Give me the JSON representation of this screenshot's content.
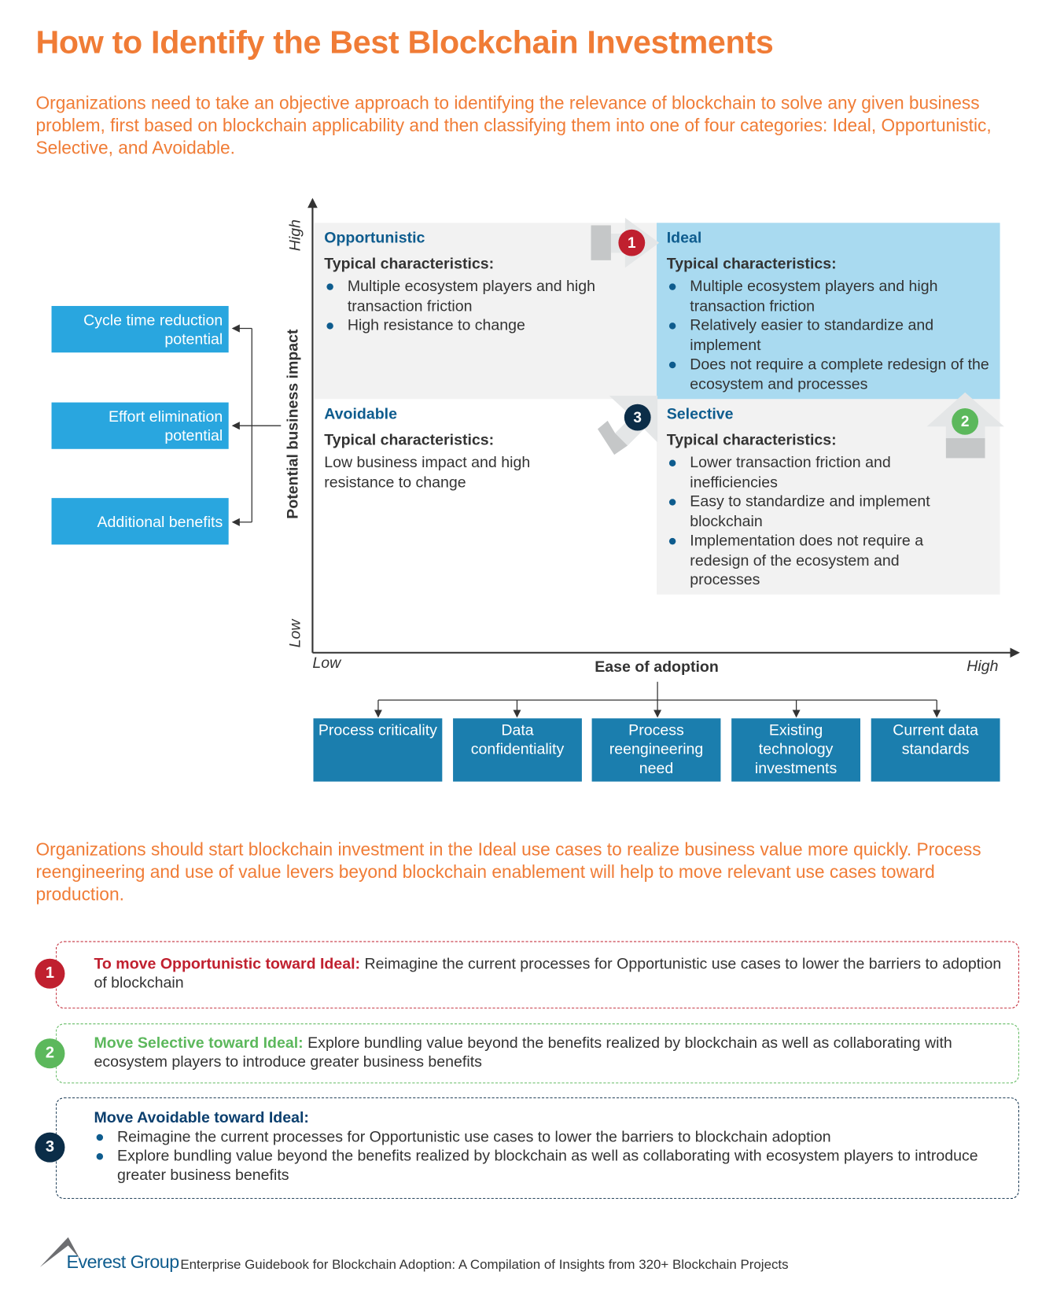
{
  "title": "How to Identify the Best Blockchain Investments",
  "intro": "Organizations need to take an objective approach to identifying the relevance of blockchain to solve any given business problem, first based on blockchain applicability and then classifying them into one of four categories: Ideal, Opportunistic, Selective, and Avoidable.",
  "matrix": {
    "y_axis": {
      "label": "Potential business impact",
      "high": "High",
      "low": "Low"
    },
    "x_axis": {
      "label": "Ease of adoption",
      "high": "High",
      "low": "Low"
    },
    "quadrants": {
      "opportunistic": {
        "title": "Opportunistic",
        "subtitle": "Typical characteristics:",
        "bullets": [
          "Multiple ecosystem players and high transaction friction",
          "High resistance to change"
        ]
      },
      "ideal": {
        "title": "Ideal",
        "subtitle": "Typical characteristics:",
        "bullets": [
          "Multiple ecosystem players and high transaction friction",
          "Relatively easier to standardize and implement",
          "Does not require a complete redesign of the ecosystem and processes"
        ]
      },
      "avoidable": {
        "title": "Avoidable",
        "subtitle": "Typical characteristics:",
        "text": "Low business impact and high resistance to change"
      },
      "selective": {
        "title": "Selective",
        "subtitle": "Typical characteristics:",
        "bullets": [
          "Lower transaction friction and inefficiencies",
          "Easy to standardize and implement blockchain",
          "Implementation does not require a redesign of the ecosystem and processes"
        ]
      }
    },
    "impact_factors": [
      "Cycle time reduction potential",
      "Effort elimination potential",
      "Additional benefits"
    ],
    "adoption_factors": [
      "Process criticality",
      "Data confidentiality",
      "Process reengineering need",
      "Existing technology investments",
      "Current data standards"
    ],
    "markers": [
      "1",
      "2",
      "3"
    ]
  },
  "conclusion": "Organizations should start blockchain investment in the Ideal use cases to realize business value more quickly. Process reengineering and use of value levers beyond blockchain enablement will help to move relevant use cases toward production.",
  "steps": [
    {
      "num": "1",
      "lead": "To move Opportunistic toward Ideal:",
      "text": " Reimagine the current processes for Opportunistic use cases to lower the barriers to adoption of blockchain",
      "color": "#c0202f"
    },
    {
      "num": "2",
      "lead": "Move Selective toward Ideal:",
      "text": " Explore bundling value beyond the benefits realized by blockchain as well as collaborating with ecosystem players to introduce greater business benefits",
      "color": "#5cb85c"
    },
    {
      "num": "3",
      "lead": "Move Avoidable toward Ideal:",
      "bullets": [
        "Reimagine the current processes for Opportunistic use cases to lower the barriers to blockchain adoption",
        "Explore bundling value beyond the benefits realized by blockchain as well as collaborating with ecosystem players to introduce greater business benefits"
      ],
      "color": "#0b2d48"
    }
  ],
  "footer": {
    "logo": "Everest Group",
    "source": "Enterprise Guidebook for Blockchain Adoption: A Compilation of Insights from 320+ Blockchain Projects"
  },
  "colors": {
    "accent": "#f07c36",
    "ideal": "#a9daf0",
    "quadrant_gray": "#f2f2f2",
    "factor_light": "#29a6df",
    "factor_dark": "#1b7eae"
  }
}
